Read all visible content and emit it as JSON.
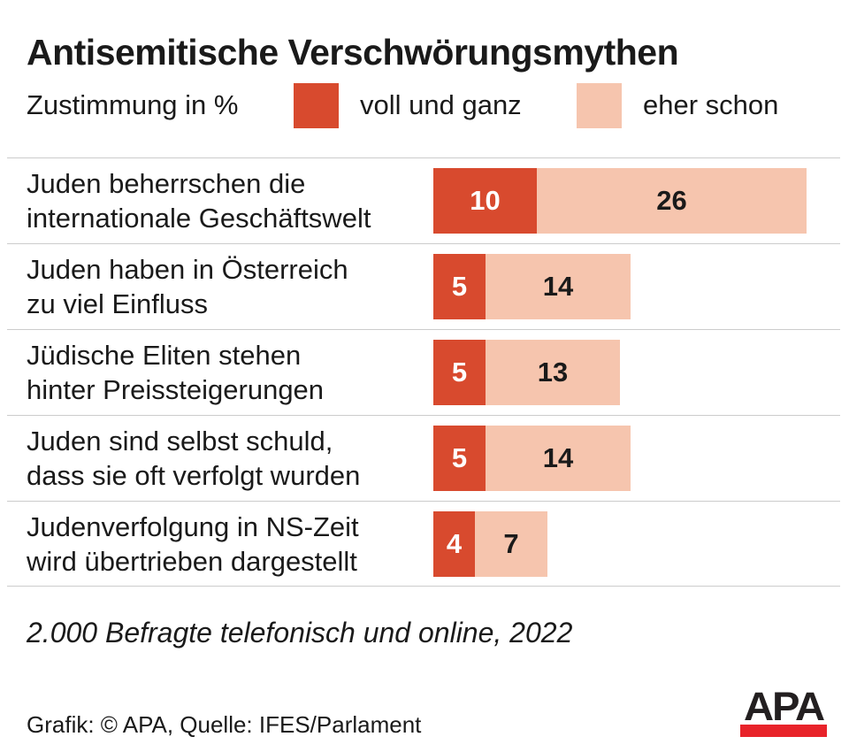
{
  "title": "Antisemitische Verschwörungsmythen",
  "legend": {
    "label": "Zustimmung in %",
    "items": [
      {
        "label": "voll und ganz",
        "color": "#d84a2e"
      },
      {
        "label": "eher schon",
        "color": "#f6c5ae"
      }
    ]
  },
  "chart_data": {
    "type": "bar",
    "orientation": "horizontal",
    "stacked": true,
    "unit": "%",
    "title": "Antisemitische Verschwörungsmythen",
    "subtitle": "Zustimmung in %",
    "categories": [
      "Juden beherrschen die internationale Geschäftswelt",
      "Juden haben in Österreich zu viel Einfluss",
      "Jüdische Eliten stehen hinter Preissteigerungen",
      "Juden sind selbst schuld, dass sie oft verfolgt wurden",
      "Judenverfolgung in NS-Zeit wird übertrieben dargestellt"
    ],
    "series": [
      {
        "name": "voll und ganz",
        "color": "#d84a2e",
        "values": [
          10,
          5,
          5,
          5,
          4
        ]
      },
      {
        "name": "eher schon",
        "color": "#f6c5ae",
        "values": [
          26,
          14,
          13,
          14,
          7
        ]
      }
    ],
    "xlim": [
      0,
      40
    ],
    "grid": false,
    "legend_position": "top",
    "value_labels": "inside"
  },
  "rows": [
    {
      "lines": [
        "Juden beherrschen die",
        "internationale Geschäftswelt"
      ]
    },
    {
      "lines": [
        "Juden haben in Österreich",
        "zu viel Einfluss"
      ]
    },
    {
      "lines": [
        "Jüdische Eliten stehen",
        "hinter Preissteigerungen"
      ]
    },
    {
      "lines": [
        "Juden sind selbst schuld,",
        "dass sie oft verfolgt wurden"
      ]
    },
    {
      "lines": [
        "Judenverfolgung in NS-Zeit",
        "wird übertrieben dargestellt"
      ]
    }
  ],
  "footnote": "2.000 Befragte telefonisch und online, 2022",
  "credit": "Grafik: © APA, Quelle: IFES/Parlament",
  "logo": {
    "text": "APA",
    "bar_color": "#e8232a",
    "text_color": "#231f20"
  }
}
